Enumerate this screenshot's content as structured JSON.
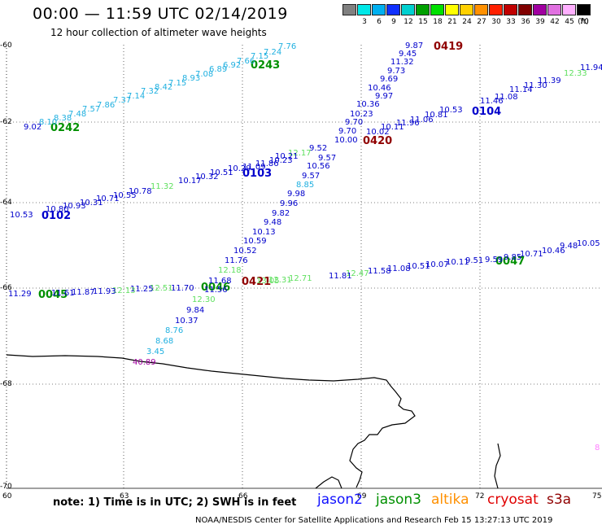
{
  "header": {
    "title": "00:00 — 11:59 UTC 02/14/2019",
    "subtitle": "12 hour collection of altimeter wave heights"
  },
  "legend": {
    "unit": "(ft)",
    "items": [
      {
        "label": "",
        "color": "#808080"
      },
      {
        "label": "3",
        "color": "#00e8e8"
      },
      {
        "label": "6",
        "color": "#00b0f0"
      },
      {
        "label": "9",
        "color": "#1030ff"
      },
      {
        "label": "12",
        "color": "#00d0d0"
      },
      {
        "label": "15",
        "color": "#00a000"
      },
      {
        "label": "18",
        "color": "#00e000"
      },
      {
        "label": "21",
        "color": "#ffff00"
      },
      {
        "label": "24",
        "color": "#ffd000"
      },
      {
        "label": "27",
        "color": "#ff9000"
      },
      {
        "label": "30",
        "color": "#ff2000"
      },
      {
        "label": "33",
        "color": "#c00000"
      },
      {
        "label": "36",
        "color": "#800000"
      },
      {
        "label": "39",
        "color": "#a000a0"
      },
      {
        "label": "42",
        "color": "#e070e0"
      },
      {
        "label": "45",
        "color": "#ffb0ff"
      },
      {
        "label": "70",
        "color": "#000000"
      }
    ]
  },
  "map": {
    "y_ticks": [
      "-60",
      "-62",
      "-64",
      "-66",
      "-68",
      "-70"
    ],
    "x_ticks": [
      "60",
      "63",
      "66",
      "69",
      "72",
      "75"
    ],
    "track_times": [
      {
        "text": "0243",
        "color": "#009000"
      },
      {
        "text": "0242",
        "color": "#009000"
      },
      {
        "text": "0419",
        "color": "#900000"
      },
      {
        "text": "0104",
        "color": "#0000cc"
      },
      {
        "text": "0420",
        "color": "#900000"
      },
      {
        "text": "0103",
        "color": "#0000cc"
      },
      {
        "text": "0102",
        "color": "#0000cc"
      },
      {
        "text": "0047",
        "color": "#009000"
      },
      {
        "text": "0421",
        "color": "#900000"
      },
      {
        "text": "0046",
        "color": "#009000"
      },
      {
        "text": "0045",
        "color": "#009000"
      }
    ],
    "wave_labels": [
      {
        "text": "7.76",
        "color": "#20b0e0"
      },
      {
        "text": "7.24",
        "color": "#20b0e0"
      },
      {
        "text": "7.15",
        "color": "#20b0e0"
      },
      {
        "text": "7.66",
        "color": "#20b0e0"
      },
      {
        "text": "6.92",
        "color": "#20b0e0"
      },
      {
        "text": "6.89",
        "color": "#20b0e0"
      },
      {
        "text": "7.08",
        "color": "#20b0e0"
      },
      {
        "text": "8.93",
        "color": "#20b0e0"
      },
      {
        "text": "7.15",
        "color": "#20b0e0"
      },
      {
        "text": "8.42",
        "color": "#20b0e0"
      },
      {
        "text": "7.32",
        "color": "#20b0e0"
      },
      {
        "text": "7.14",
        "color": "#20b0e0"
      },
      {
        "text": "7.37",
        "color": "#20b0e0"
      },
      {
        "text": "7.86",
        "color": "#20b0e0"
      },
      {
        "text": "7.57",
        "color": "#20b0e0"
      },
      {
        "text": "7.48",
        "color": "#20b0e0"
      },
      {
        "text": "8.38",
        "color": "#20b0e0"
      },
      {
        "text": "8.10",
        "color": "#20b0e0"
      },
      {
        "text": "9.02",
        "color": "#0000cc"
      },
      {
        "text": "9.87",
        "color": "#0000cc"
      },
      {
        "text": "9.45",
        "color": "#0000cc"
      },
      {
        "text": "11.32",
        "color": "#0000cc"
      },
      {
        "text": "9.73",
        "color": "#0000cc"
      },
      {
        "text": "9.69",
        "color": "#0000cc"
      },
      {
        "text": "9.97",
        "color": "#0000cc"
      },
      {
        "text": "10.46",
        "color": "#0000cc"
      },
      {
        "text": "10.36",
        "color": "#0000cc"
      },
      {
        "text": "10.23",
        "color": "#0000cc"
      },
      {
        "text": "9.70",
        "color": "#0000cc"
      },
      {
        "text": "9.70",
        "color": "#0000cc"
      },
      {
        "text": "10.00",
        "color": "#0000cc"
      },
      {
        "text": "9.52",
        "color": "#0000cc"
      },
      {
        "text": "9.57",
        "color": "#0000cc"
      },
      {
        "text": "10.56",
        "color": "#0000cc"
      },
      {
        "text": "9.57",
        "color": "#0000cc"
      },
      {
        "text": "8.85",
        "color": "#20b0e0"
      },
      {
        "text": "9.98",
        "color": "#0000cc"
      },
      {
        "text": "9.96",
        "color": "#0000cc"
      },
      {
        "text": "9.82",
        "color": "#0000cc"
      },
      {
        "text": "9.48",
        "color": "#0000cc"
      },
      {
        "text": "10.13",
        "color": "#0000cc"
      },
      {
        "text": "10.59",
        "color": "#0000cc"
      },
      {
        "text": "10.52",
        "color": "#0000cc"
      },
      {
        "text": "11.76",
        "color": "#0000cc"
      },
      {
        "text": "11.68",
        "color": "#0000cc"
      },
      {
        "text": "11.56",
        "color": "#0000cc"
      },
      {
        "text": "12.18",
        "color": "#60e060"
      },
      {
        "text": "12.30",
        "color": "#60e060"
      },
      {
        "text": "9.84",
        "color": "#0000cc"
      },
      {
        "text": "10.37",
        "color": "#0000cc"
      },
      {
        "text": "8.76",
        "color": "#20b0e0"
      },
      {
        "text": "8.68",
        "color": "#20b0e0"
      },
      {
        "text": "3.45",
        "color": "#20b0e0"
      },
      {
        "text": "40.89",
        "color": "#a000a0"
      },
      {
        "text": "11.94",
        "color": "#0000cc"
      },
      {
        "text": "12.33",
        "color": "#60e060"
      },
      {
        "text": "11.39",
        "color": "#0000cc"
      },
      {
        "text": "11.30",
        "color": "#0000cc"
      },
      {
        "text": "11.14",
        "color": "#0000cc"
      },
      {
        "text": "11.08",
        "color": "#0000cc"
      },
      {
        "text": "11.46",
        "color": "#0000cc"
      },
      {
        "text": "10.53",
        "color": "#0000cc"
      },
      {
        "text": "10.81",
        "color": "#0000cc"
      },
      {
        "text": "11.06",
        "color": "#0000cc"
      },
      {
        "text": "10.11",
        "color": "#0000cc"
      },
      {
        "text": "10.02",
        "color": "#0000cc"
      },
      {
        "text": "11.96",
        "color": "#0000cc"
      },
      {
        "text": "10.23",
        "color": "#0000cc"
      },
      {
        "text": "12.17",
        "color": "#60e060"
      },
      {
        "text": "10.21",
        "color": "#0000cc"
      },
      {
        "text": "11.09",
        "color": "#0000cc"
      },
      {
        "text": "11.86",
        "color": "#0000cc"
      },
      {
        "text": "10.29",
        "color": "#0000cc"
      },
      {
        "text": "10.51",
        "color": "#0000cc"
      },
      {
        "text": "10.32",
        "color": "#0000cc"
      },
      {
        "text": "10.17",
        "color": "#0000cc"
      },
      {
        "text": "11.32",
        "color": "#60e060"
      },
      {
        "text": "10.78",
        "color": "#0000cc"
      },
      {
        "text": "10.55",
        "color": "#0000cc"
      },
      {
        "text": "10.71",
        "color": "#0000cc"
      },
      {
        "text": "10.31",
        "color": "#0000cc"
      },
      {
        "text": "10.93",
        "color": "#0000cc"
      },
      {
        "text": "10.80",
        "color": "#0000cc"
      },
      {
        "text": "10.53",
        "color": "#0000cc"
      },
      {
        "text": "10.05",
        "color": "#0000cc"
      },
      {
        "text": "9.48",
        "color": "#0000cc"
      },
      {
        "text": "10.46",
        "color": "#0000cc"
      },
      {
        "text": "10.71",
        "color": "#0000cc"
      },
      {
        "text": "9.85",
        "color": "#0000cc"
      },
      {
        "text": "9.59",
        "color": "#0000cc"
      },
      {
        "text": "9.51",
        "color": "#0000cc"
      },
      {
        "text": "10.11",
        "color": "#0000cc"
      },
      {
        "text": "10.07",
        "color": "#0000cc"
      },
      {
        "text": "10.51",
        "color": "#0000cc"
      },
      {
        "text": "11.08",
        "color": "#0000cc"
      },
      {
        "text": "11.58",
        "color": "#0000cc"
      },
      {
        "text": "12.47",
        "color": "#60e060"
      },
      {
        "text": "11.81",
        "color": "#0000cc"
      },
      {
        "text": "12.71",
        "color": "#60e060"
      },
      {
        "text": "12.31",
        "color": "#60e060"
      },
      {
        "text": "13.05",
        "color": "#60e060"
      },
      {
        "text": "11.70",
        "color": "#0000cc"
      },
      {
        "text": "12.51",
        "color": "#60e060"
      },
      {
        "text": "11.25",
        "color": "#0000cc"
      },
      {
        "text": "12.13",
        "color": "#60e060"
      },
      {
        "text": "11.93",
        "color": "#0000cc"
      },
      {
        "text": "11.87",
        "color": "#0000cc"
      },
      {
        "text": "11.61",
        "color": "#0000cc"
      },
      {
        "text": "11.29",
        "color": "#0000cc"
      },
      {
        "text": "8",
        "color": "#ff80ff"
      }
    ]
  },
  "footer": {
    "note": "note:  1) Time is in UTC;  2) SWH is in feet",
    "satellites": [
      {
        "name": "jason2",
        "color": "#1010ff"
      },
      {
        "name": "jason3",
        "color": "#009000"
      },
      {
        "name": "altika",
        "color": "#ff9000"
      },
      {
        "name": "cryosat",
        "color": "#e00000"
      },
      {
        "name": "s3a",
        "color": "#900000"
      }
    ],
    "credit": "NOAA/NESDIS Center for Satellite Applications and Research    Feb 15 13:27:13 UTC 2019"
  }
}
